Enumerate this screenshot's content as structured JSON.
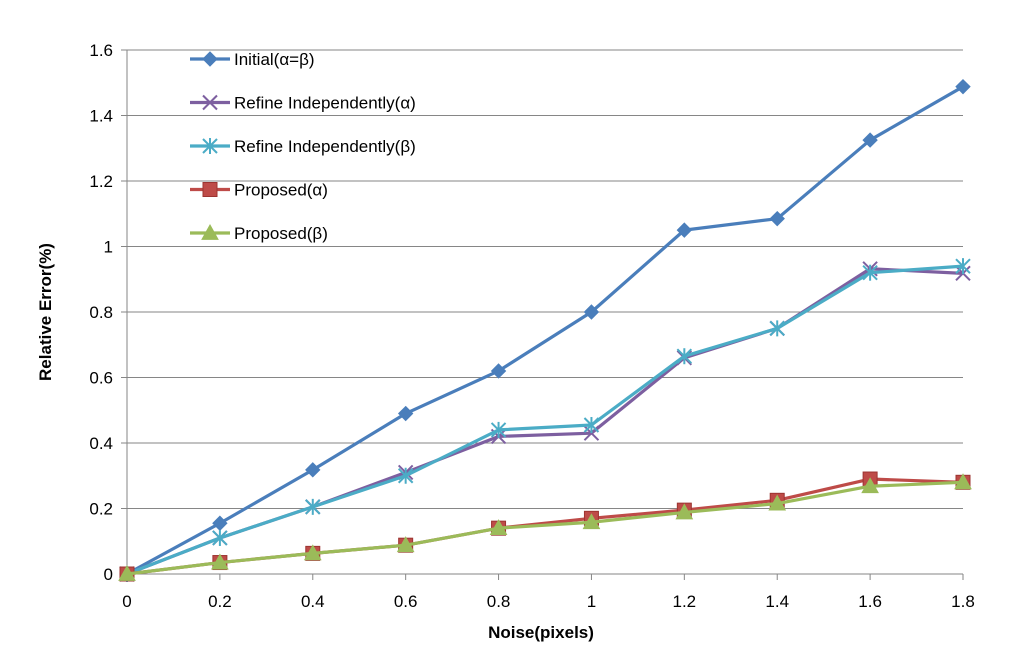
{
  "chart_data": {
    "type": "line",
    "title": "",
    "xlabel": "Noise(pixels)",
    "ylabel": "Relative Error(%)",
    "x": [
      0,
      0.2,
      0.4,
      0.6,
      0.8,
      1,
      1.2,
      1.4,
      1.6,
      1.8
    ],
    "xticks": [
      "0",
      "0.2",
      "0.4",
      "0.6",
      "0.8",
      "1",
      "1.2",
      "1.4",
      "1.6",
      "1.8"
    ],
    "yticks": [
      "0",
      "0.2",
      "0.4",
      "0.6",
      "0.8",
      "1",
      "1.2",
      "1.4",
      "1.6"
    ],
    "ylim": [
      0,
      1.6
    ],
    "grid": true,
    "legend_position": "top-left inside",
    "series": [
      {
        "name": "Initial(α=β)",
        "color": "#4A7EBB",
        "marker": "diamond",
        "values": [
          0,
          0.155,
          0.318,
          0.49,
          0.62,
          0.8,
          1.05,
          1.085,
          1.325,
          1.488
        ]
      },
      {
        "name": "Refine Independently(α)",
        "color": "#7D5FA0",
        "marker": "x",
        "values": [
          0,
          0.11,
          0.205,
          0.31,
          0.42,
          0.43,
          0.66,
          0.75,
          0.932,
          0.918
        ]
      },
      {
        "name": "Refine Independently(β)",
        "color": "#4BACC6",
        "marker": "star",
        "values": [
          0,
          0.11,
          0.205,
          0.3,
          0.44,
          0.455,
          0.665,
          0.75,
          0.92,
          0.94
        ]
      },
      {
        "name": "Proposed(α)",
        "color": "#BE4B48",
        "marker": "square",
        "values": [
          0,
          0.035,
          0.063,
          0.088,
          0.14,
          0.17,
          0.195,
          0.225,
          0.29,
          0.28
        ]
      },
      {
        "name": "Proposed(β)",
        "color": "#9BBB59",
        "marker": "triangle",
        "values": [
          0,
          0.035,
          0.063,
          0.088,
          0.14,
          0.158,
          0.188,
          0.215,
          0.268,
          0.28
        ]
      }
    ]
  }
}
